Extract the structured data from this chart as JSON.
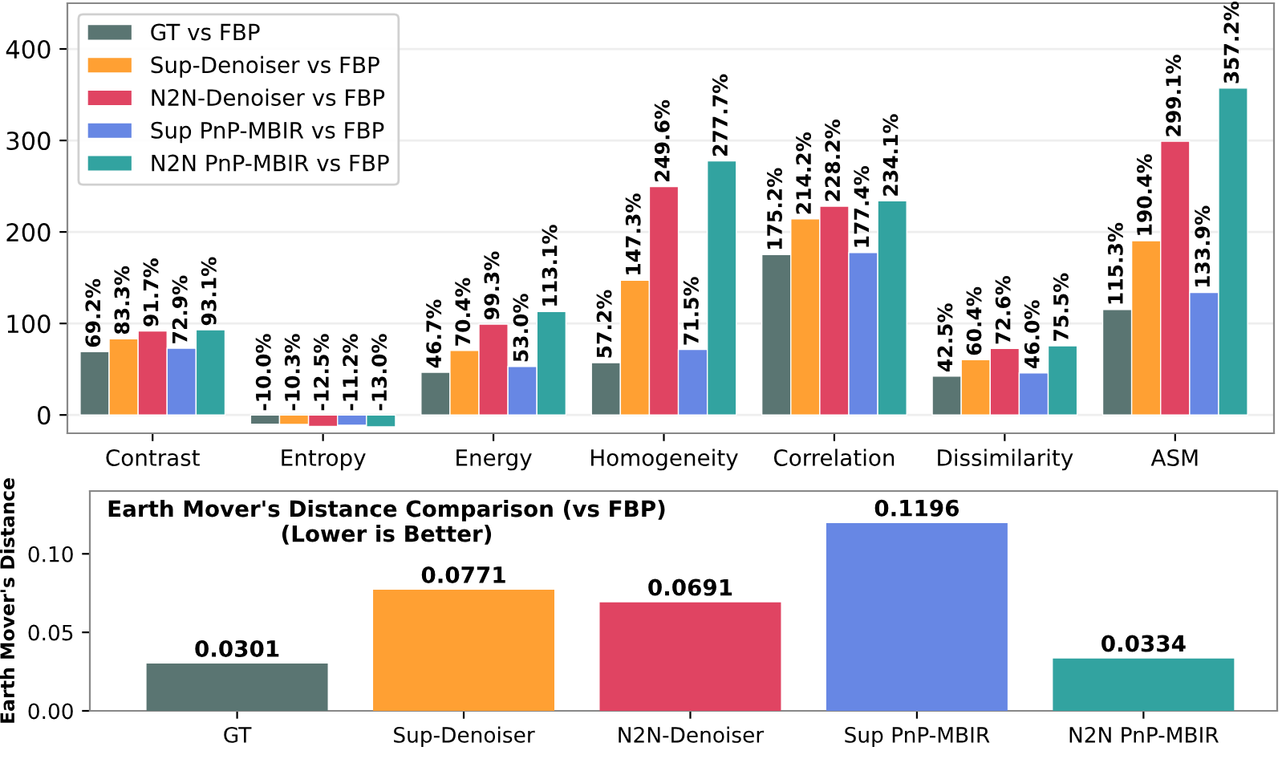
{
  "chart_data": [
    {
      "type": "bar",
      "categories": [
        "Contrast",
        "Entropy",
        "Energy",
        "Homogeneity",
        "Correlation",
        "Dissimilarity",
        "ASM"
      ],
      "series": [
        {
          "name": "GT vs FBP",
          "color": "#5a7572",
          "values": [
            69.2,
            -10.0,
            46.7,
            57.2,
            175.2,
            42.5,
            115.3
          ],
          "value_labels": [
            "69.2%",
            "-10.0%",
            "46.7%",
            "57.2%",
            "175.2%",
            "42.5%",
            "115.3%"
          ]
        },
        {
          "name": "Sup-Denoiser vs FBP",
          "color": "#ffa033",
          "values": [
            83.3,
            -10.3,
            70.4,
            147.3,
            214.2,
            60.4,
            190.4
          ],
          "value_labels": [
            "83.3%",
            "-10.3%",
            "70.4%",
            "147.3%",
            "214.2%",
            "60.4%",
            "190.4%"
          ]
        },
        {
          "name": "N2N-Denoiser vs FBP",
          "color": "#e04462",
          "values": [
            91.7,
            -12.5,
            99.3,
            249.6,
            228.2,
            72.6,
            299.1
          ],
          "value_labels": [
            "91.7%",
            "-12.5%",
            "99.3%",
            "249.6%",
            "228.2%",
            "72.6%",
            "299.1%"
          ]
        },
        {
          "name": "Sup PnP-MBIR vs FBP",
          "color": "#6787e4",
          "values": [
            72.9,
            -11.2,
            53.0,
            71.5,
            177.4,
            46.0,
            133.9
          ],
          "value_labels": [
            "72.9%",
            "-11.2%",
            "53.0%",
            "71.5%",
            "177.4%",
            "46.0%",
            "133.9%"
          ]
        },
        {
          "name": "N2N PnP-MBIR vs FBP",
          "color": "#32a3a0",
          "values": [
            93.1,
            -13.0,
            113.1,
            277.7,
            234.1,
            75.5,
            357.2
          ],
          "value_labels": [
            "93.1%",
            "-13.0%",
            "113.1%",
            "277.7%",
            "234.1%",
            "75.5%",
            "357.2%"
          ]
        }
      ],
      "ylim": [
        -20,
        450
      ],
      "yticks": [
        0,
        100,
        200,
        300,
        400
      ],
      "grid": "y",
      "legend": "top left"
    },
    {
      "type": "bar",
      "title": "Earth Mover's Distance Comparison (vs FBP)\n(Lower is Better)",
      "ylabel": "Earth Mover's Distance",
      "categories": [
        "GT",
        "Sup-Denoiser",
        "N2N-Denoiser",
        "Sup PnP-MBIR",
        "N2N PnP-MBIR"
      ],
      "values": [
        0.0301,
        0.0771,
        0.0691,
        0.1196,
        0.0334
      ],
      "colors": [
        "#5a7572",
        "#ffa033",
        "#e04462",
        "#6787e4",
        "#32a3a0"
      ],
      "ylim": [
        0,
        0.14
      ],
      "yticks": [
        {
          "value": 0,
          "label": "0.00"
        },
        {
          "value": 0.05,
          "label": "0.05"
        },
        {
          "value": 0.1,
          "label": "0.10"
        }
      ],
      "data_labels": true
    }
  ]
}
